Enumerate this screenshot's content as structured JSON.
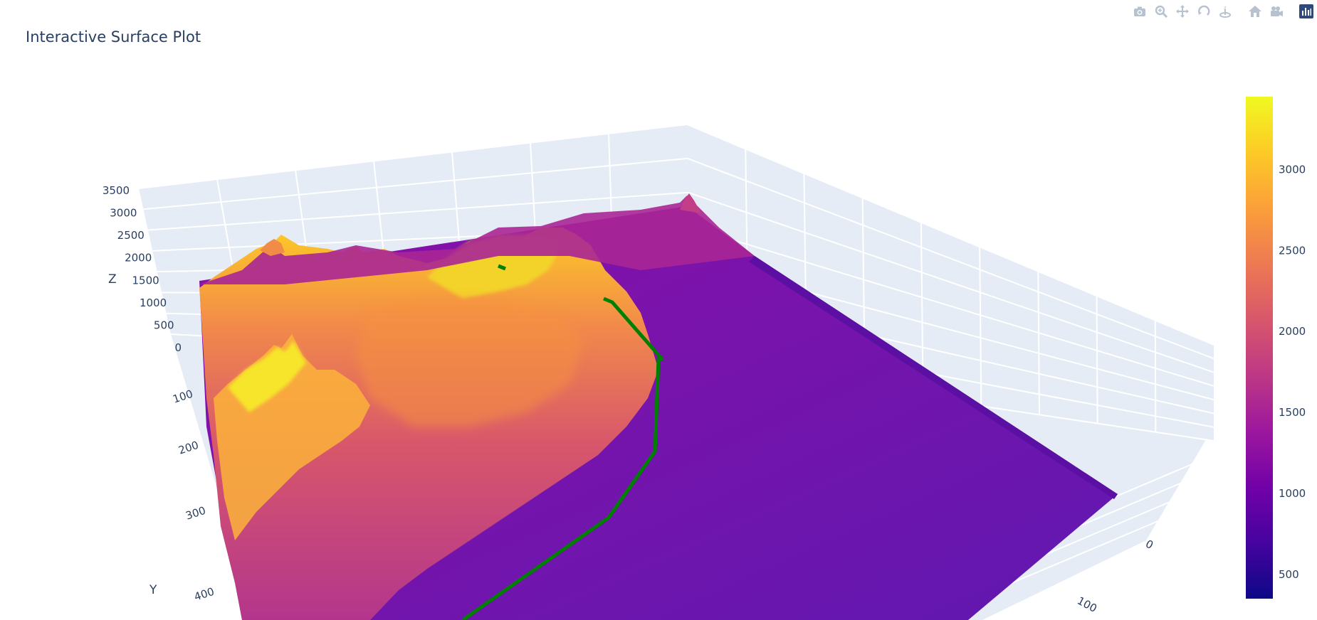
{
  "title": "Interactive Surface Plot",
  "modebar": {
    "buttons": [
      {
        "name": "camera-icon"
      },
      {
        "name": "zoom-icon"
      },
      {
        "name": "pan-icon"
      },
      {
        "name": "orbit-icon"
      },
      {
        "name": "turntable-icon"
      },
      {
        "name": "home-icon"
      },
      {
        "name": "video-camera-icon"
      },
      {
        "name": "plotly-logo-icon"
      }
    ]
  },
  "chart_data": {
    "type": "surface",
    "title": "Interactive Surface Plot",
    "colorscale": [
      "#0d0887",
      "#46039f",
      "#7201a8",
      "#9c179e",
      "#bd3786",
      "#d8576b",
      "#ed7953",
      "#fb9f3a",
      "#fdca26",
      "#f0f921"
    ],
    "axes": {
      "x": {
        "title": "",
        "ticks": [
          "0",
          "100"
        ]
      },
      "y": {
        "title": "Y",
        "ticks": [
          "100",
          "200",
          "300",
          "400"
        ]
      },
      "z": {
        "title": "Z",
        "ticks": [
          "0",
          "500",
          "1000",
          "1500",
          "2000",
          "2500",
          "3000",
          "3500"
        ],
        "range": [
          0,
          3500
        ]
      }
    },
    "colorbar": {
      "range": [
        350,
        3450
      ],
      "ticks": [
        500,
        1000,
        1500,
        2000,
        2500,
        3000
      ]
    },
    "series": [
      {
        "kind": "surface"
      },
      {
        "kind": "line",
        "color": "#008000"
      }
    ],
    "background_color": "#e5ecf6",
    "grid": true
  }
}
